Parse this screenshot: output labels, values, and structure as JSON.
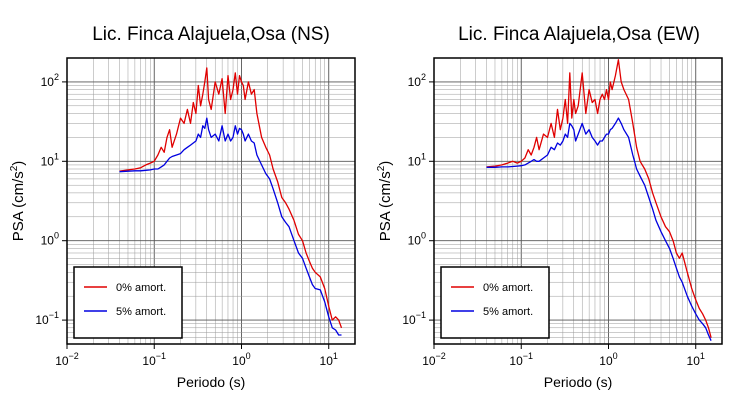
{
  "chart_data": [
    {
      "type": "line",
      "title": "Lic. Finca Alajuela,Osa (NS)",
      "xlabel": "Periodo (s)",
      "ylabel_main": "PSA (cm/s",
      "ylabel_sup": "2",
      "ylabel_end": ")",
      "xscale": "log",
      "yscale": "log",
      "xlim": [
        0.01,
        20
      ],
      "ylim": [
        0.05,
        200
      ],
      "grid": true,
      "legend_position": "bottom-left",
      "x_ticks": [
        {
          "value": 0.01,
          "base": "10",
          "exp": "−2"
        },
        {
          "value": 0.1,
          "base": "10",
          "exp": "−1"
        },
        {
          "value": 1,
          "base": "10",
          "exp": "0"
        },
        {
          "value": 10,
          "base": "10",
          "exp": "1"
        }
      ],
      "y_ticks": [
        {
          "value": 0.1,
          "base": "10",
          "exp": "−1"
        },
        {
          "value": 1,
          "base": "10",
          "exp": "0"
        },
        {
          "value": 10,
          "base": "10",
          "exp": "1"
        },
        {
          "value": 100,
          "base": "10",
          "exp": "2"
        }
      ],
      "series": [
        {
          "name": "0% amort.",
          "color": "#e00000",
          "x": [
            0.04,
            0.05,
            0.06,
            0.07,
            0.08,
            0.09,
            0.1,
            0.11,
            0.12,
            0.13,
            0.14,
            0.15,
            0.16,
            0.18,
            0.2,
            0.22,
            0.24,
            0.26,
            0.28,
            0.3,
            0.32,
            0.34,
            0.36,
            0.38,
            0.4,
            0.42,
            0.45,
            0.5,
            0.55,
            0.6,
            0.65,
            0.7,
            0.75,
            0.8,
            0.85,
            0.9,
            0.95,
            1.0,
            1.05,
            1.1,
            1.2,
            1.3,
            1.4,
            1.5,
            1.7,
            1.9,
            2.1,
            2.3,
            2.6,
            2.9,
            3.2,
            3.5,
            4.0,
            4.5,
            5.0,
            5.5,
            6.0,
            6.5,
            7.0,
            8.0,
            9.0,
            10.0,
            11.0,
            12.0,
            13.0,
            14.0
          ],
          "y": [
            7.5,
            7.8,
            8.0,
            8.3,
            9.0,
            9.5,
            10.0,
            12.0,
            15.0,
            13.0,
            20.0,
            25.0,
            15.0,
            22.0,
            35.0,
            30.0,
            45.0,
            30.0,
            55.0,
            40.0,
            90.0,
            50.0,
            70.0,
            100.0,
            150.0,
            60.0,
            45.0,
            100.0,
            70.0,
            110.0,
            40.0,
            120.0,
            60.0,
            80.0,
            130.0,
            70.0,
            120.0,
            100.0,
            90.0,
            60.0,
            100.0,
            70.0,
            80.0,
            40.0,
            20.0,
            15.0,
            12.0,
            8.0,
            5.5,
            3.5,
            3.0,
            2.5,
            1.8,
            1.2,
            1.0,
            0.7,
            0.55,
            0.45,
            0.4,
            0.35,
            0.25,
            0.15,
            0.1,
            0.11,
            0.1,
            0.08
          ]
        },
        {
          "name": "5% amort.",
          "color": "#0000e0",
          "x": [
            0.04,
            0.05,
            0.06,
            0.07,
            0.08,
            0.09,
            0.1,
            0.11,
            0.12,
            0.13,
            0.14,
            0.15,
            0.16,
            0.18,
            0.2,
            0.22,
            0.24,
            0.26,
            0.28,
            0.3,
            0.32,
            0.34,
            0.36,
            0.38,
            0.4,
            0.42,
            0.45,
            0.5,
            0.55,
            0.6,
            0.65,
            0.7,
            0.75,
            0.8,
            0.85,
            0.9,
            0.95,
            1.0,
            1.05,
            1.1,
            1.2,
            1.3,
            1.4,
            1.5,
            1.7,
            1.9,
            2.1,
            2.3,
            2.6,
            2.9,
            3.2,
            3.5,
            4.0,
            4.5,
            5.0,
            5.5,
            6.0,
            6.5,
            7.0,
            8.0,
            9.0,
            10.0,
            11.0,
            12.0,
            13.0,
            14.0
          ],
          "y": [
            7.4,
            7.5,
            7.6,
            7.6,
            7.7,
            7.8,
            8.0,
            8.0,
            8.5,
            9.0,
            10.0,
            11.0,
            11.5,
            12.0,
            12.5,
            14.0,
            15.0,
            16.0,
            17.0,
            18.0,
            22.0,
            20.0,
            28.0,
            26.0,
            35.0,
            25.0,
            20.0,
            22.0,
            18.0,
            28.0,
            18.0,
            22.0,
            18.0,
            20.0,
            28.0,
            22.0,
            26.0,
            25.0,
            22.0,
            18.0,
            22.0,
            18.0,
            17.0,
            12.0,
            9.0,
            7.0,
            6.0,
            4.5,
            3.0,
            2.0,
            1.7,
            1.5,
            1.0,
            0.7,
            0.6,
            0.45,
            0.35,
            0.28,
            0.25,
            0.24,
            0.17,
            0.11,
            0.08,
            0.075,
            0.065,
            0.065
          ]
        }
      ]
    },
    {
      "type": "line",
      "title": "Lic. Finca Alajuela,Osa (EW)",
      "xlabel": "Periodo (s)",
      "ylabel_main": "PSA (cm/s",
      "ylabel_sup": "2",
      "ylabel_end": ")",
      "xscale": "log",
      "yscale": "log",
      "xlim": [
        0.01,
        20
      ],
      "ylim": [
        0.05,
        200
      ],
      "grid": true,
      "legend_position": "bottom-left",
      "x_ticks": [
        {
          "value": 0.01,
          "base": "10",
          "exp": "−2"
        },
        {
          "value": 0.1,
          "base": "10",
          "exp": "−1"
        },
        {
          "value": 1,
          "base": "10",
          "exp": "0"
        },
        {
          "value": 10,
          "base": "10",
          "exp": "1"
        }
      ],
      "y_ticks": [
        {
          "value": 0.1,
          "base": "10",
          "exp": "−1"
        },
        {
          "value": 1,
          "base": "10",
          "exp": "0"
        },
        {
          "value": 10,
          "base": "10",
          "exp": "1"
        },
        {
          "value": 100,
          "base": "10",
          "exp": "2"
        }
      ],
      "series": [
        {
          "name": "0% amort.",
          "color": "#e00000",
          "x": [
            0.04,
            0.05,
            0.06,
            0.07,
            0.08,
            0.09,
            0.1,
            0.11,
            0.12,
            0.13,
            0.14,
            0.15,
            0.16,
            0.18,
            0.2,
            0.22,
            0.24,
            0.26,
            0.28,
            0.3,
            0.32,
            0.34,
            0.36,
            0.38,
            0.4,
            0.42,
            0.45,
            0.5,
            0.55,
            0.6,
            0.65,
            0.7,
            0.75,
            0.8,
            0.85,
            0.9,
            0.95,
            1.0,
            1.05,
            1.1,
            1.2,
            1.3,
            1.4,
            1.5,
            1.7,
            1.9,
            2.1,
            2.3,
            2.6,
            2.9,
            3.2,
            3.5,
            4.0,
            4.5,
            5.0,
            5.5,
            6.0,
            6.5,
            7.0,
            8.0,
            9.0,
            10.0,
            11.0,
            12.0,
            13.0,
            14.0,
            15.0
          ],
          "y": [
            8.5,
            8.7,
            9.0,
            9.5,
            10.0,
            9.5,
            10.0,
            11.0,
            14.0,
            12.0,
            15.0,
            20.0,
            14.0,
            22.0,
            20.0,
            30.0,
            20.0,
            45.0,
            25.0,
            35.0,
            60.0,
            30.0,
            130.0,
            35.0,
            60.0,
            40.0,
            50.0,
            130.0,
            40.0,
            80.0,
            55.0,
            60.0,
            40.0,
            60.0,
            70.0,
            60.0,
            80.0,
            60.0,
            100.0,
            80.0,
            120.0,
            190.0,
            100.0,
            80.0,
            60.0,
            30.0,
            15.0,
            10.0,
            8.0,
            6.0,
            4.0,
            3.0,
            2.0,
            1.5,
            1.3,
            1.0,
            0.7,
            0.6,
            0.7,
            0.4,
            0.25,
            0.18,
            0.14,
            0.12,
            0.1,
            0.08,
            0.06
          ]
        },
        {
          "name": "5% amort.",
          "color": "#0000e0",
          "x": [
            0.04,
            0.05,
            0.06,
            0.07,
            0.08,
            0.09,
            0.1,
            0.11,
            0.12,
            0.13,
            0.14,
            0.15,
            0.16,
            0.18,
            0.2,
            0.22,
            0.24,
            0.26,
            0.28,
            0.3,
            0.32,
            0.34,
            0.36,
            0.38,
            0.4,
            0.42,
            0.45,
            0.5,
            0.55,
            0.6,
            0.65,
            0.7,
            0.75,
            0.8,
            0.85,
            0.9,
            0.95,
            1.0,
            1.05,
            1.1,
            1.2,
            1.3,
            1.4,
            1.5,
            1.7,
            1.9,
            2.1,
            2.3,
            2.6,
            2.9,
            3.2,
            3.5,
            4.0,
            4.5,
            5.0,
            5.5,
            6.0,
            6.5,
            7.0,
            8.0,
            9.0,
            10.0,
            11.0,
            12.0,
            13.0,
            14.0,
            15.0
          ],
          "y": [
            8.4,
            8.4,
            8.5,
            8.5,
            8.6,
            8.7,
            8.8,
            9.0,
            9.5,
            10.0,
            10.5,
            10.0,
            10.0,
            11.0,
            12.0,
            15.0,
            14.0,
            17.0,
            16.0,
            18.0,
            22.0,
            20.0,
            30.0,
            28.0,
            25.0,
            18.0,
            22.0,
            30.0,
            22.0,
            25.0,
            20.0,
            18.0,
            16.0,
            18.0,
            18.0,
            20.0,
            22.0,
            22.0,
            25.0,
            26.0,
            30.0,
            35.0,
            30.0,
            25.0,
            20.0,
            12.0,
            8.0,
            6.5,
            5.0,
            3.5,
            2.5,
            1.8,
            1.3,
            1.0,
            0.8,
            0.6,
            0.45,
            0.35,
            0.3,
            0.2,
            0.15,
            0.12,
            0.1,
            0.09,
            0.08,
            0.065,
            0.055
          ]
        }
      ]
    }
  ]
}
